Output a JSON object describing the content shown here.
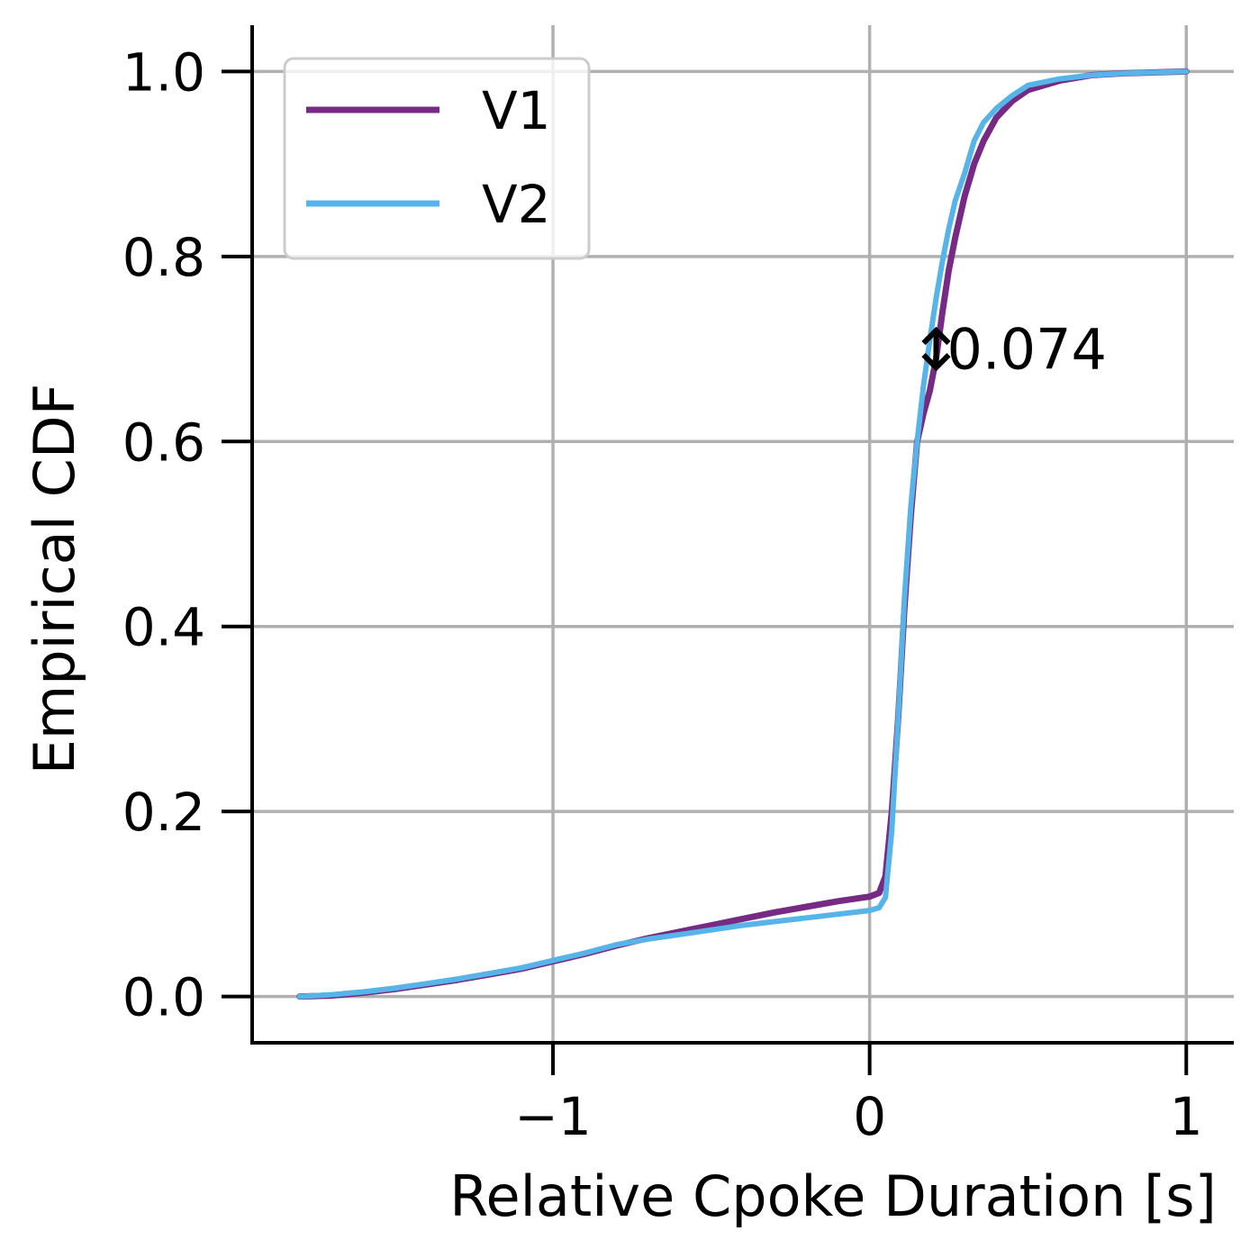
{
  "chart_data": {
    "type": "line",
    "xlabel": "Relative Cpoke Duration [s]",
    "ylabel": "Empirical CDF",
    "xlim": [
      -1.95,
      1.15
    ],
    "ylim": [
      -0.05,
      1.05
    ],
    "xticks": [
      -1,
      0,
      1
    ],
    "xtick_labels": [
      "−1",
      "0",
      "1"
    ],
    "yticks": [
      0.0,
      0.2,
      0.4,
      0.6,
      0.8,
      1.0
    ],
    "ytick_labels": [
      "0.0",
      "0.2",
      "0.4",
      "0.6",
      "0.8",
      "1.0"
    ],
    "grid": true,
    "legend_position": "top-left",
    "series": [
      {
        "name": "V1",
        "color": "#762a83",
        "x": [
          -1.8,
          -1.7,
          -1.6,
          -1.5,
          -1.4,
          -1.3,
          -1.2,
          -1.1,
          -1.0,
          -0.9,
          -0.8,
          -0.7,
          -0.6,
          -0.5,
          -0.4,
          -0.3,
          -0.2,
          -0.1,
          0.0,
          0.03,
          0.05,
          0.07,
          0.09,
          0.11,
          0.13,
          0.15,
          0.17,
          0.19,
          0.21,
          0.23,
          0.25,
          0.27,
          0.3,
          0.33,
          0.36,
          0.4,
          0.45,
          0.5,
          0.6,
          0.7,
          0.8,
          0.9,
          1.0
        ],
        "y": [
          0.0,
          0.001,
          0.004,
          0.008,
          0.013,
          0.018,
          0.024,
          0.03,
          0.038,
          0.046,
          0.055,
          0.063,
          0.07,
          0.077,
          0.084,
          0.091,
          0.097,
          0.103,
          0.108,
          0.112,
          0.13,
          0.2,
          0.3,
          0.42,
          0.52,
          0.6,
          0.63,
          0.655,
          0.69,
          0.74,
          0.785,
          0.82,
          0.865,
          0.9,
          0.925,
          0.95,
          0.968,
          0.98,
          0.99,
          0.996,
          0.998,
          0.999,
          1.0
        ]
      },
      {
        "name": "V2",
        "color": "#56b4e9",
        "x": [
          -1.8,
          -1.7,
          -1.6,
          -1.5,
          -1.4,
          -1.3,
          -1.2,
          -1.1,
          -1.0,
          -0.9,
          -0.8,
          -0.7,
          -0.6,
          -0.5,
          -0.4,
          -0.3,
          -0.2,
          -0.1,
          0.0,
          0.03,
          0.05,
          0.07,
          0.09,
          0.11,
          0.13,
          0.15,
          0.17,
          0.19,
          0.21,
          0.23,
          0.25,
          0.27,
          0.3,
          0.33,
          0.36,
          0.4,
          0.45,
          0.5,
          0.6,
          0.7,
          0.8,
          0.9,
          1.0
        ],
        "y": [
          0.0,
          0.002,
          0.005,
          0.009,
          0.014,
          0.019,
          0.025,
          0.031,
          0.039,
          0.047,
          0.056,
          0.062,
          0.067,
          0.072,
          0.077,
          0.081,
          0.085,
          0.089,
          0.093,
          0.096,
          0.107,
          0.18,
          0.3,
          0.43,
          0.53,
          0.6,
          0.66,
          0.71,
          0.755,
          0.795,
          0.83,
          0.86,
          0.89,
          0.925,
          0.945,
          0.96,
          0.974,
          0.985,
          0.992,
          0.996,
          0.998,
          0.999,
          1.0
        ]
      }
    ],
    "annotation": {
      "label": "0.074",
      "x": 0.21,
      "y_low": 0.68,
      "y_high": 0.72
    }
  }
}
